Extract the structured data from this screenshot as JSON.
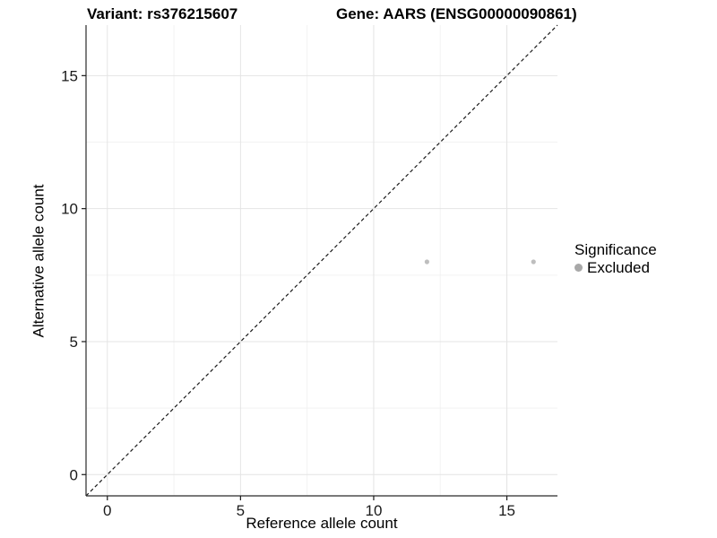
{
  "titles": {
    "left": "Variant: rs376215607",
    "right": "Gene: AARS (ENSG00000090861)"
  },
  "chart_data": {
    "type": "scatter",
    "title_left": "Variant: rs376215607",
    "title_right": "Gene: AARS (ENSG00000090861)",
    "xlabel": "Reference allele count",
    "ylabel": "Alternative allele count",
    "xlim": [
      -0.8,
      16.9
    ],
    "ylim": [
      -0.8,
      16.9
    ],
    "x_ticks": [
      0,
      5,
      10,
      15
    ],
    "y_ticks": [
      0,
      5,
      10,
      15
    ],
    "x_minor_ticks": [
      2.5,
      7.5,
      12.5
    ],
    "y_minor_ticks": [
      2.5,
      7.5,
      12.5
    ],
    "grid": "major+minor",
    "series": [
      {
        "name": "Excluded",
        "color": "#bebebe",
        "points": [
          {
            "x": 12,
            "y": 8
          },
          {
            "x": 16,
            "y": 8
          }
        ]
      }
    ],
    "reference_line": {
      "type": "abline",
      "slope": 1,
      "intercept": 0,
      "style": "dashed",
      "color": "#1a1a1a"
    },
    "legend": {
      "title": "Significance",
      "position": "right",
      "entries": [
        {
          "label": "Excluded",
          "color": "#a8a8a8"
        }
      ]
    }
  },
  "colors": {
    "background": "#ffffff",
    "major_grid": "#e4e4e4",
    "minor_grid": "#f2f2f2",
    "axis_line": "#2b2b2b",
    "tick_mark": "#1a1a1a",
    "tick_label": "#1a1a1a",
    "point": "#bebebe",
    "legend_key": "#a8a8a8"
  }
}
